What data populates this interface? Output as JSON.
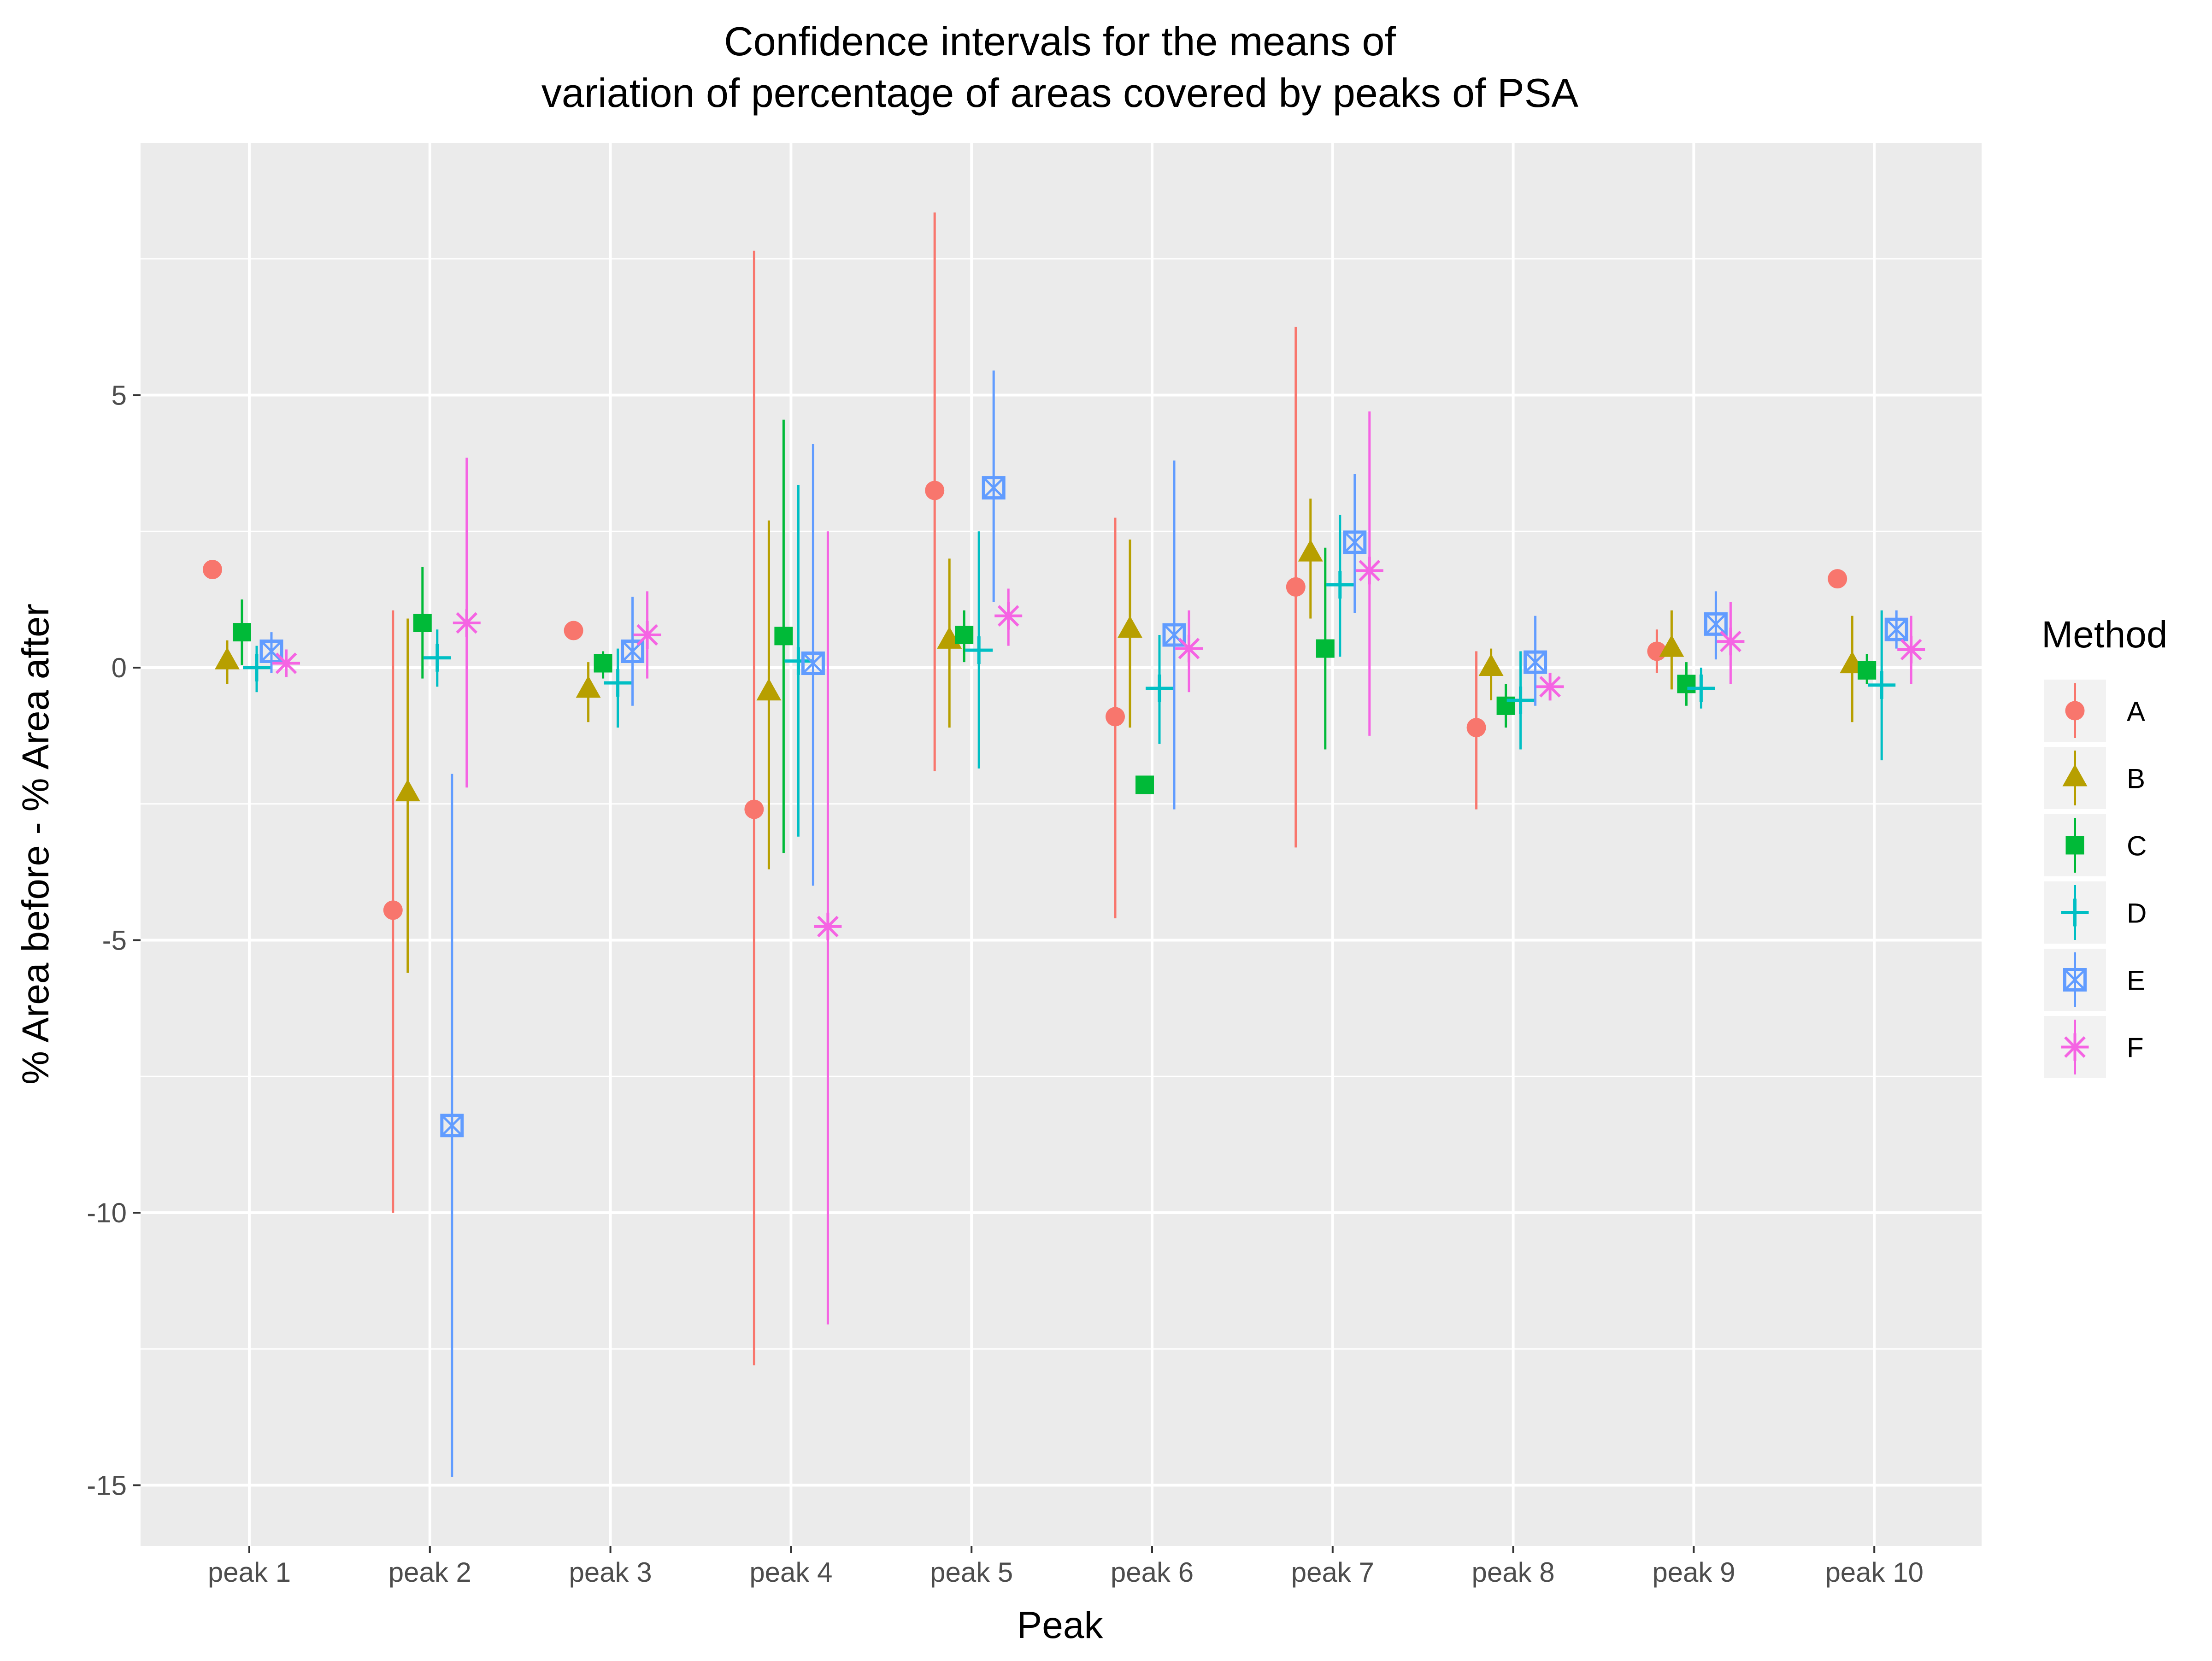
{
  "chart_data": {
    "type": "scatter",
    "title_lines": [
      "Confidence intervals for the means of",
      "variation of percentage of areas covered by peaks of PSA"
    ],
    "xlabel": "Peak",
    "ylabel": "% Area before - % Area after",
    "categories": [
      "peak 1",
      "peak 2",
      "peak 3",
      "peak 4",
      "peak 5",
      "peak 6",
      "peak 7",
      "peak 8",
      "peak 9",
      "peak 10"
    ],
    "ylim": [
      -16,
      10
    ],
    "y_ticks": [
      5,
      0,
      -5,
      -10,
      -15
    ],
    "y_tick_labels": [
      "5",
      "0",
      "-5",
      "-10",
      "-15"
    ],
    "grid": true,
    "legend": {
      "title": "Method",
      "position": "right"
    },
    "series": [
      {
        "name": "A",
        "color": "#F8766D",
        "shape": "circle",
        "mean": [
          1.8,
          -4.45,
          0.68,
          -2.6,
          3.25,
          -0.9,
          1.48,
          -1.1,
          0.3,
          1.63
        ],
        "lower": [
          null,
          -10.0,
          null,
          -12.8,
          -1.9,
          -4.6,
          -3.3,
          -2.6,
          -0.1,
          null
        ],
        "upper": [
          null,
          1.05,
          null,
          7.65,
          8.35,
          2.75,
          6.25,
          0.3,
          0.7,
          null
        ]
      },
      {
        "name": "B",
        "color": "#B79F00",
        "shape": "triangle",
        "mean": [
          0.12,
          -2.3,
          -0.4,
          -0.45,
          0.5,
          0.7,
          2.1,
          0.0,
          0.35,
          0.05
        ],
        "lower": [
          -0.3,
          -5.6,
          -1.0,
          -3.7,
          -1.1,
          -1.1,
          0.9,
          -0.6,
          -0.4,
          -1.0
        ],
        "upper": [
          0.5,
          0.9,
          0.1,
          2.7,
          2.0,
          2.35,
          3.1,
          0.35,
          1.05,
          0.95
        ]
      },
      {
        "name": "C",
        "color": "#00BA38",
        "shape": "square",
        "mean": [
          0.65,
          0.82,
          0.08,
          0.58,
          0.6,
          -2.15,
          0.35,
          -0.7,
          -0.3,
          -0.05
        ],
        "lower": [
          0.05,
          -0.2,
          -0.2,
          -3.4,
          0.1,
          null,
          -1.5,
          -1.1,
          -0.7,
          -0.3
        ],
        "upper": [
          1.25,
          1.85,
          0.3,
          4.55,
          1.05,
          null,
          2.2,
          -0.3,
          0.1,
          0.25
        ]
      },
      {
        "name": "D",
        "color": "#00BFC4",
        "shape": "plus",
        "mean": [
          0.0,
          0.18,
          -0.28,
          0.12,
          0.32,
          -0.38,
          1.52,
          -0.6,
          -0.38,
          -0.32
        ],
        "lower": [
          -0.45,
          -0.35,
          -1.1,
          -3.1,
          -1.85,
          -1.4,
          0.2,
          -1.5,
          -0.75,
          -1.7
        ],
        "upper": [
          0.4,
          0.7,
          0.35,
          3.35,
          2.5,
          0.6,
          2.8,
          0.3,
          0.0,
          1.05
        ]
      },
      {
        "name": "E",
        "color": "#619CFF",
        "shape": "square-cross",
        "mean": [
          0.3,
          -8.4,
          0.3,
          0.08,
          3.3,
          0.6,
          2.3,
          0.1,
          0.8,
          0.7
        ],
        "lower": [
          -0.1,
          -14.85,
          -0.7,
          -4.0,
          1.2,
          -2.6,
          1.0,
          -0.7,
          0.15,
          0.35
        ],
        "upper": [
          0.65,
          -1.95,
          1.3,
          4.1,
          5.45,
          3.8,
          3.55,
          0.95,
          1.4,
          1.05
        ]
      },
      {
        "name": "F",
        "color": "#F564E3",
        "shape": "asterisk",
        "mean": [
          0.08,
          0.82,
          0.6,
          -4.75,
          0.95,
          0.35,
          1.78,
          -0.35,
          0.48,
          0.33
        ],
        "lower": [
          null,
          -2.2,
          -0.2,
          -12.05,
          0.4,
          -0.45,
          -1.25,
          null,
          -0.3,
          -0.3
        ],
        "upper": [
          null,
          3.85,
          1.4,
          2.5,
          1.45,
          1.05,
          4.7,
          null,
          1.2,
          0.95
        ]
      }
    ]
  }
}
